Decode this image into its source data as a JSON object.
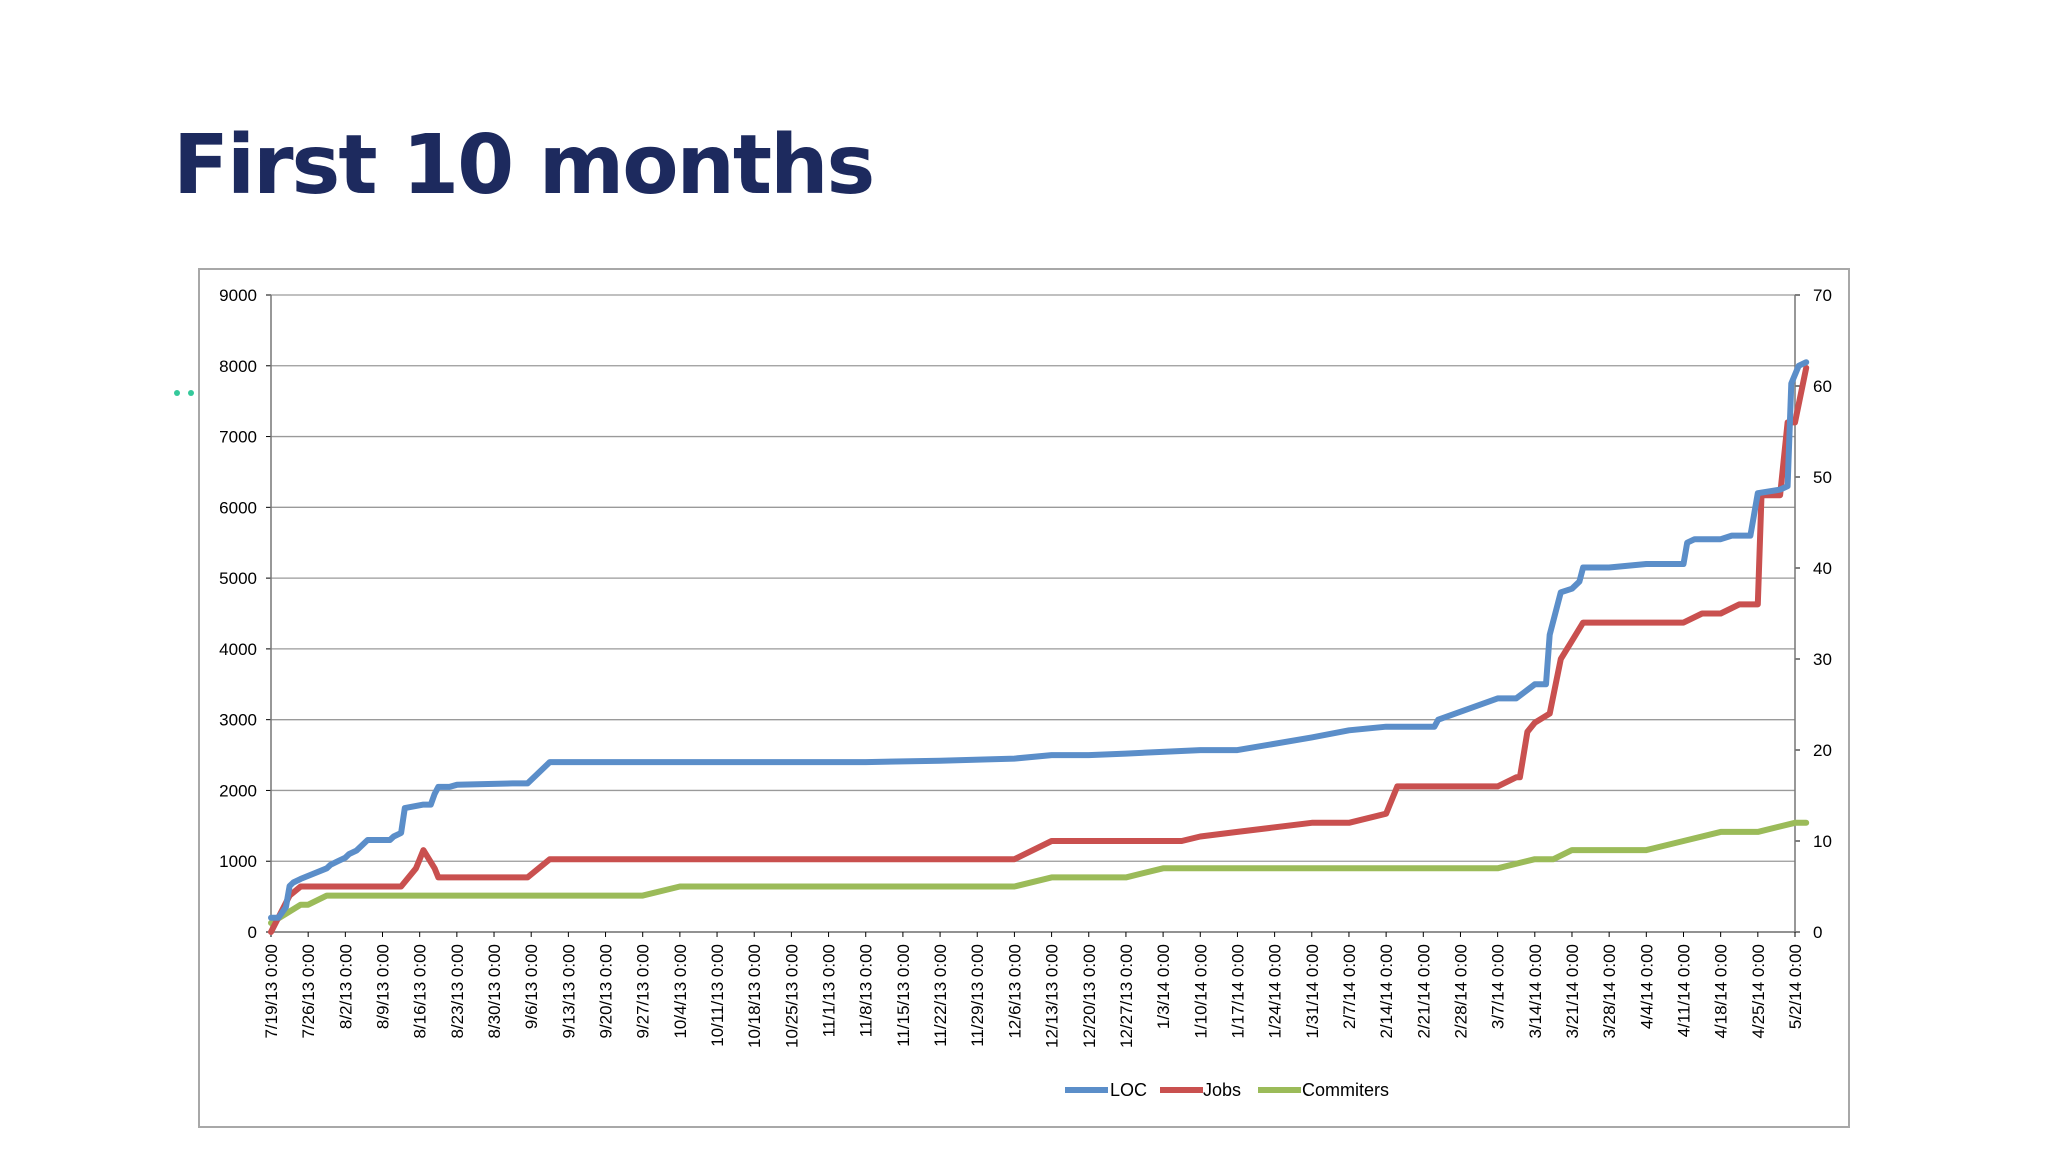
{
  "slide": {
    "title": "First 10 months"
  },
  "colors": {
    "title": "#1d2a5e",
    "loc": "#5b8ec9",
    "jobs": "#c9504f",
    "commiters": "#9bbb59",
    "grid": "#9a9a9a",
    "accent_dots": "#35c99b"
  },
  "chart_data": {
    "type": "line",
    "title": "",
    "xlabel": "",
    "ylabel": "",
    "y2label": "",
    "ylim": [
      0,
      9000
    ],
    "y2lim": [
      0,
      70
    ],
    "y_ticks": [
      "0",
      "1000",
      "2000",
      "3000",
      "4000",
      "5000",
      "6000",
      "7000",
      "8000",
      "9000"
    ],
    "y2_ticks": [
      "0",
      "10",
      "20",
      "30",
      "40",
      "50",
      "60",
      "70"
    ],
    "grid": true,
    "legend_position": "bottom",
    "x_ticks": [
      "7/19/13 0:00",
      "7/26/13 0:00",
      "8/2/13 0:00",
      "8/9/13 0:00",
      "8/16/13 0:00",
      "8/23/13 0:00",
      "8/30/13 0:00",
      "9/6/13 0:00",
      "9/13/13 0:00",
      "9/20/13 0:00",
      "9/27/13 0:00",
      "10/4/13 0:00",
      "10/11/13 0:00",
      "10/18/13 0:00",
      "10/25/13 0:00",
      "11/1/13 0:00",
      "11/8/13 0:00",
      "11/15/13 0:00",
      "11/22/13 0:00",
      "11/29/13 0:00",
      "12/6/13 0:00",
      "12/13/13 0:00",
      "12/20/13 0:00",
      "12/27/13 0:00",
      "1/3/14 0:00",
      "1/10/14 0:00",
      "1/17/14 0:00",
      "1/24/14 0:00",
      "1/31/14 0:00",
      "2/7/14 0:00",
      "2/14/14 0:00",
      "2/21/14 0:00",
      "2/28/14 0:00",
      "3/7/14 0:00",
      "3/14/14 0:00",
      "3/21/14 0:00",
      "3/28/14 0:00",
      "4/4/14 0:00",
      "4/11/14 0:00",
      "4/18/14 0:00",
      "4/25/14 0:00",
      "5/2/14 0:00"
    ],
    "series": [
      {
        "name": "LOC",
        "axis": "left",
        "x": [
          0,
          0.1,
          0.2,
          0.4,
          0.5,
          0.6,
          0.8,
          1.5,
          1.6,
          1.8,
          2.0,
          2.1,
          2.3,
          2.6,
          2.8,
          3.2,
          3.3,
          3.5,
          3.6,
          4.1,
          4.3,
          4.4,
          4.5,
          4.6,
          4.8,
          5.0,
          6.5,
          6.8,
          6.9,
          7.5,
          7.9,
          8.0,
          8.5,
          10.0,
          12.0,
          14.0,
          16.0,
          18.0,
          20.0,
          21.0,
          22.0,
          23.0,
          25.0,
          25.5,
          26.0,
          28.0,
          29.0,
          30.0,
          31.0,
          31.3,
          31.4,
          33.0,
          33.5,
          34.0,
          34.3,
          34.4,
          34.7,
          35.0,
          35.2,
          35.3,
          36.0,
          37.0,
          38.0,
          38.1,
          38.3,
          39.0,
          39.3,
          39.4,
          39.8,
          40.0,
          40.6,
          40.8,
          40.9,
          41.1,
          41.3
        ],
        "y": [
          200,
          200,
          200,
          350,
          650,
          700,
          750,
          900,
          950,
          1000,
          1050,
          1100,
          1150,
          1300,
          1300,
          1300,
          1350,
          1400,
          1750,
          1800,
          1800,
          1950,
          2050,
          2050,
          2050,
          2080,
          2100,
          2100,
          2100,
          2400,
          2400,
          2400,
          2400,
          2400,
          2400,
          2400,
          2400,
          2420,
          2450,
          2500,
          2500,
          2520,
          2570,
          2570,
          2570,
          2750,
          2850,
          2900,
          2900,
          2900,
          3000,
          3300,
          3300,
          3500,
          3500,
          4200,
          4800,
          4850,
          4950,
          5150,
          5150,
          5200,
          5200,
          5500,
          5550,
          5550,
          5600,
          5600,
          5600,
          6200,
          6250,
          6300,
          7750,
          8000,
          8050
        ]
      },
      {
        "name": "Jobs",
        "axis": "right",
        "x": [
          0,
          0.5,
          0.8,
          1.5,
          3.5,
          3.9,
          4.0,
          4.1,
          4.4,
          4.5,
          6.9,
          7.5,
          8.0,
          16.0,
          20.0,
          21.0,
          22.0,
          23.0,
          24.5,
          25.0,
          26.0,
          28.0,
          29.0,
          30.0,
          30.1,
          30.3,
          31.0,
          32.5,
          33.0,
          33.5,
          33.6,
          33.8,
          34.0,
          34.4,
          34.7,
          35.0,
          35.3,
          38.0,
          38.5,
          39.0,
          39.5,
          40.0,
          40.1,
          40.6,
          40.8,
          41.0,
          41.3
        ],
        "y": [
          0,
          4,
          5,
          5,
          5,
          7,
          8,
          9,
          7,
          6,
          6,
          8,
          8,
          8,
          8,
          10,
          10,
          10,
          10,
          10.5,
          11,
          12,
          12,
          13,
          14,
          16,
          16,
          16,
          16,
          17,
          17,
          22,
          23,
          24,
          30,
          32,
          34,
          34,
          35,
          35,
          36,
          36,
          48,
          48,
          56,
          56,
          62
        ]
      },
      {
        "name": "Commiters",
        "axis": "right",
        "x": [
          0,
          0.4,
          0.8,
          1.0,
          1.5,
          2.0,
          4.0,
          6.0,
          8.0,
          10.0,
          11.0,
          11.5,
          12.0,
          16.0,
          20.0,
          21.0,
          22.0,
          23.0,
          24.0,
          24.5,
          26.0,
          28.0,
          31.0,
          33.0,
          34.0,
          34.5,
          35.0,
          36.0,
          37.0,
          38.0,
          39.0,
          39.5,
          40.0,
          41.0,
          41.3
        ],
        "y": [
          1,
          2,
          3,
          3,
          4,
          4,
          4,
          4,
          4,
          4,
          5,
          5,
          5,
          5,
          5,
          6,
          6,
          6,
          7,
          7,
          7,
          7,
          7,
          7,
          8,
          8,
          9,
          9,
          9,
          10,
          11,
          11,
          11,
          12,
          12
        ]
      }
    ]
  }
}
